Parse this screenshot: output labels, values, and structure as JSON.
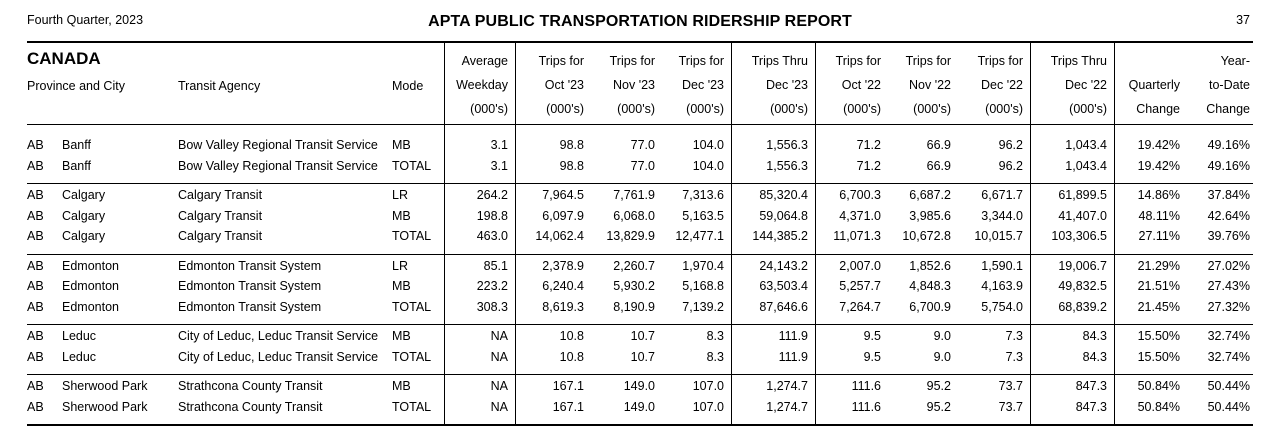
{
  "header": {
    "quarter": "Fourth Quarter, 2023",
    "title": "APTA PUBLIC TRANSPORTATION RIDERSHIP REPORT",
    "page": "37"
  },
  "section": {
    "country": "CANADA",
    "province_city_label": "Province and City",
    "agency_label": "Transit Agency",
    "mode_label": "Mode"
  },
  "columns": [
    [
      "Average",
      "Weekday",
      "(000's)"
    ],
    [
      "Trips for",
      "Oct '23",
      "(000's)"
    ],
    [
      "Trips for",
      "Nov '23",
      "(000's)"
    ],
    [
      "Trips for",
      "Dec '23",
      "(000's)"
    ],
    [
      "Trips Thru",
      "Dec '23",
      "(000's)"
    ],
    [
      "Trips for",
      "Oct '22",
      "(000's)"
    ],
    [
      "Trips for",
      "Nov '22",
      "(000's)"
    ],
    [
      "Trips for",
      "Dec '22",
      "(000's)"
    ],
    [
      "Trips Thru",
      "Dec '22",
      "(000's)"
    ],
    [
      "",
      "Quarterly",
      "Change"
    ],
    [
      "Year-",
      "to-Date",
      "Change"
    ]
  ],
  "groups": [
    {
      "rows": [
        {
          "prov": "AB",
          "city": "Banff",
          "agency": "Bow Valley Regional Transit Service",
          "mode": "MB",
          "values": [
            "3.1",
            "98.8",
            "77.0",
            "104.0",
            "1,556.3",
            "71.2",
            "66.9",
            "96.2",
            "1,043.4",
            "19.42%",
            "49.16%"
          ]
        },
        {
          "prov": "AB",
          "city": "Banff",
          "agency": "Bow Valley Regional Transit Service",
          "mode": "TOTAL",
          "values": [
            "3.1",
            "98.8",
            "77.0",
            "104.0",
            "1,556.3",
            "71.2",
            "66.9",
            "96.2",
            "1,043.4",
            "19.42%",
            "49.16%"
          ]
        }
      ]
    },
    {
      "rows": [
        {
          "prov": "AB",
          "city": "Calgary",
          "agency": "Calgary Transit",
          "mode": "LR",
          "values": [
            "264.2",
            "7,964.5",
            "7,761.9",
            "7,313.6",
            "85,320.4",
            "6,700.3",
            "6,687.2",
            "6,671.7",
            "61,899.5",
            "14.86%",
            "37.84%"
          ]
        },
        {
          "prov": "AB",
          "city": "Calgary",
          "agency": "Calgary Transit",
          "mode": "MB",
          "values": [
            "198.8",
            "6,097.9",
            "6,068.0",
            "5,163.5",
            "59,064.8",
            "4,371.0",
            "3,985.6",
            "3,344.0",
            "41,407.0",
            "48.11%",
            "42.64%"
          ]
        },
        {
          "prov": "AB",
          "city": "Calgary",
          "agency": "Calgary Transit",
          "mode": "TOTAL",
          "values": [
            "463.0",
            "14,062.4",
            "13,829.9",
            "12,477.1",
            "144,385.2",
            "11,071.3",
            "10,672.8",
            "10,015.7",
            "103,306.5",
            "27.11%",
            "39.76%"
          ]
        }
      ]
    },
    {
      "rows": [
        {
          "prov": "AB",
          "city": "Edmonton",
          "agency": "Edmonton Transit System",
          "mode": "LR",
          "values": [
            "85.1",
            "2,378.9",
            "2,260.7",
            "1,970.4",
            "24,143.2",
            "2,007.0",
            "1,852.6",
            "1,590.1",
            "19,006.7",
            "21.29%",
            "27.02%"
          ]
        },
        {
          "prov": "AB",
          "city": "Edmonton",
          "agency": "Edmonton Transit System",
          "mode": "MB",
          "values": [
            "223.2",
            "6,240.4",
            "5,930.2",
            "5,168.8",
            "63,503.4",
            "5,257.7",
            "4,848.3",
            "4,163.9",
            "49,832.5",
            "21.51%",
            "27.43%"
          ]
        },
        {
          "prov": "AB",
          "city": "Edmonton",
          "agency": "Edmonton Transit System",
          "mode": "TOTAL",
          "values": [
            "308.3",
            "8,619.3",
            "8,190.9",
            "7,139.2",
            "87,646.6",
            "7,264.7",
            "6,700.9",
            "5,754.0",
            "68,839.2",
            "21.45%",
            "27.32%"
          ]
        }
      ]
    },
    {
      "rows": [
        {
          "prov": "AB",
          "city": "Leduc",
          "agency": "City of Leduc, Leduc Transit Service",
          "mode": "MB",
          "values": [
            "NA",
            "10.8",
            "10.7",
            "8.3",
            "111.9",
            "9.5",
            "9.0",
            "7.3",
            "84.3",
            "15.50%",
            "32.74%"
          ]
        },
        {
          "prov": "AB",
          "city": "Leduc",
          "agency": "City of Leduc, Leduc Transit Service",
          "mode": "TOTAL",
          "values": [
            "NA",
            "10.8",
            "10.7",
            "8.3",
            "111.9",
            "9.5",
            "9.0",
            "7.3",
            "84.3",
            "15.50%",
            "32.74%"
          ]
        }
      ]
    },
    {
      "rows": [
        {
          "prov": "AB",
          "city": "Sherwood Park",
          "agency": "Strathcona County Transit",
          "mode": "MB",
          "values": [
            "NA",
            "167.1",
            "149.0",
            "107.0",
            "1,274.7",
            "111.6",
            "95.2",
            "73.7",
            "847.3",
            "50.84%",
            "50.44%"
          ]
        },
        {
          "prov": "AB",
          "city": "Sherwood Park",
          "agency": "Strathcona County Transit",
          "mode": "TOTAL",
          "values": [
            "NA",
            "167.1",
            "149.0",
            "107.0",
            "1,274.7",
            "111.6",
            "95.2",
            "73.7",
            "847.3",
            "50.84%",
            "50.44%"
          ]
        }
      ]
    }
  ]
}
